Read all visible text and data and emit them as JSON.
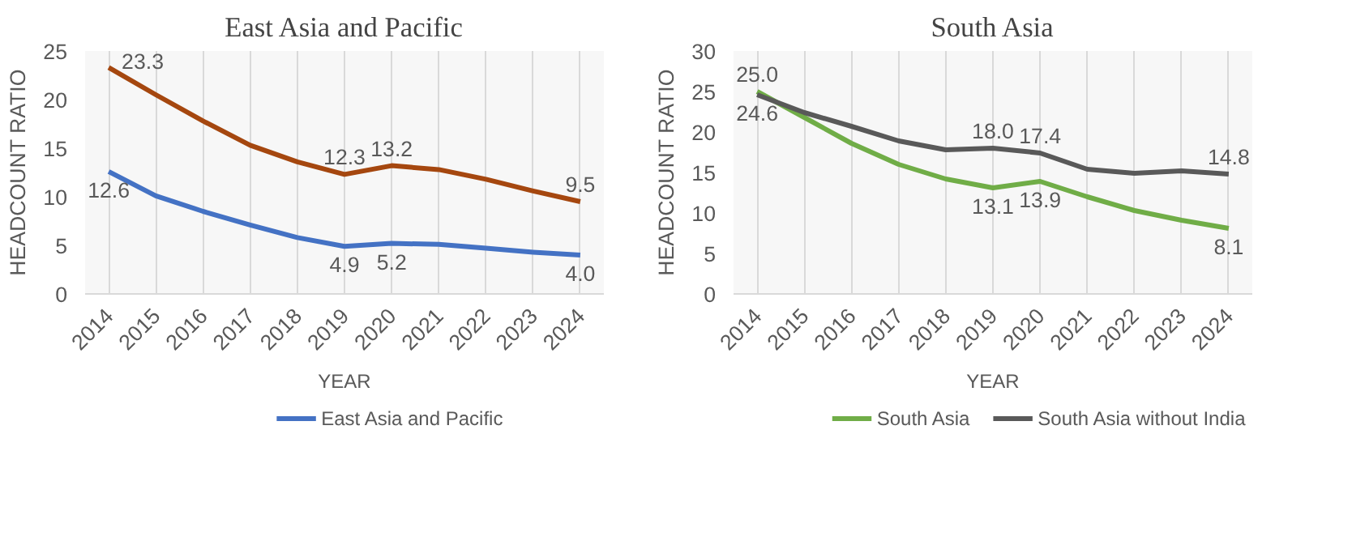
{
  "chart_data": [
    {
      "type": "line",
      "title": "East Asia and Pacific",
      "xlabel": "YEAR",
      "ylabel": "HEADCOUNT RATIO",
      "categories": [
        "2014",
        "2015",
        "2016",
        "2017",
        "2018",
        "2019",
        "2020",
        "2021",
        "2022",
        "2023",
        "2024"
      ],
      "ylim": [
        0,
        25
      ],
      "yticks": [
        0,
        5,
        10,
        15,
        20,
        25
      ],
      "grid": "x",
      "legend": "bottom",
      "series": [
        {
          "color": "#a5470f",
          "values": [
            23.3,
            20.5,
            17.8,
            15.3,
            13.6,
            12.3,
            13.2,
            12.8,
            11.8,
            10.6,
            9.5
          ],
          "value_labels": [
            "23.3",
            null,
            null,
            null,
            null,
            "12.3",
            "13.2",
            null,
            null,
            null,
            "9.5"
          ]
        },
        {
          "name": "East Asia and Pacific",
          "color": "#4472c4",
          "values": [
            12.6,
            10.1,
            8.5,
            7.1,
            5.8,
            4.9,
            5.2,
            5.1,
            4.7,
            4.3,
            4.0
          ],
          "value_labels": [
            "12.6",
            null,
            null,
            null,
            null,
            "4.9",
            "5.2",
            null,
            null,
            null,
            "4.0"
          ]
        }
      ]
    },
    {
      "type": "line",
      "title": "South Asia",
      "xlabel": "YEAR",
      "ylabel": "HEADCOUNT RATIO",
      "categories": [
        "2014",
        "2015",
        "2016",
        "2017",
        "2018",
        "2019",
        "2020",
        "2021",
        "2022",
        "2023",
        "2024"
      ],
      "ylim": [
        0,
        30
      ],
      "yticks": [
        0,
        5,
        10,
        15,
        20,
        25,
        30
      ],
      "grid": "x",
      "legend": "bottom",
      "series": [
        {
          "name": "South Asia",
          "color": "#70ad47",
          "values": [
            25.0,
            21.8,
            18.6,
            16.0,
            14.2,
            13.1,
            13.9,
            12.0,
            10.3,
            9.1,
            8.1
          ],
          "value_labels": [
            "25.0",
            null,
            null,
            null,
            null,
            "13.1",
            "13.9",
            null,
            null,
            null,
            "8.1"
          ]
        },
        {
          "name": "South Asia without India",
          "color": "#595959",
          "values": [
            24.6,
            22.4,
            20.7,
            18.9,
            17.8,
            18.0,
            17.4,
            15.4,
            14.9,
            15.2,
            14.8
          ],
          "value_labels": [
            "24.6",
            null,
            null,
            null,
            null,
            "18.0",
            "17.4",
            null,
            null,
            null,
            "14.8"
          ]
        }
      ]
    }
  ]
}
